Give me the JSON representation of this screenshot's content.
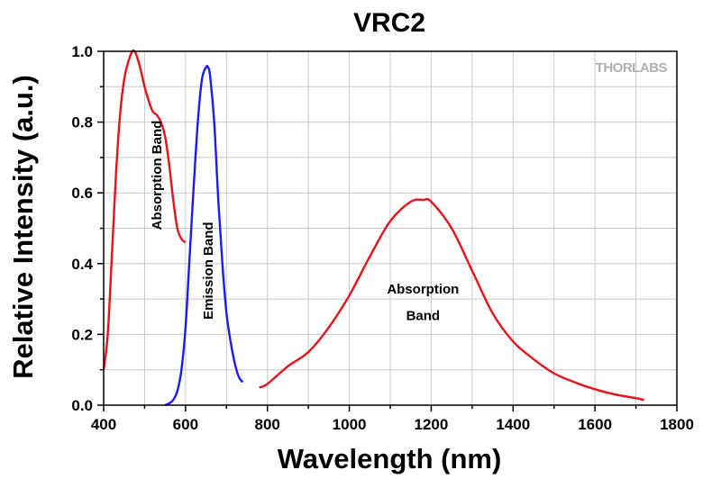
{
  "chart_data": {
    "type": "line",
    "title": "VRC2",
    "xlabel": "Wavelength (nm)",
    "ylabel": "Relative Intensity (a.u.)",
    "xlim": [
      400,
      1800
    ],
    "ylim": [
      0.0,
      1.0
    ],
    "grid": true,
    "x_ticks": [
      "400",
      "600",
      "800",
      "1000",
      "1200",
      "1400",
      "1600",
      "1800"
    ],
    "y_ticks": [
      "0.0",
      "0.2",
      "0.4",
      "0.6",
      "0.8",
      "1.0"
    ],
    "logo": "THORLABS",
    "series": [
      {
        "label": "Absorption Band",
        "color": "#e8101a",
        "x": [
          400,
          410,
          420,
          430,
          440,
          450,
          460,
          470,
          475,
          480,
          490,
          500,
          510,
          520,
          530,
          540,
          550,
          560,
          570,
          580,
          590,
          600
        ],
        "y": [
          0.1,
          0.2,
          0.42,
          0.65,
          0.82,
          0.92,
          0.97,
          1.0,
          1.0,
          0.99,
          0.95,
          0.9,
          0.86,
          0.83,
          0.82,
          0.8,
          0.76,
          0.68,
          0.58,
          0.5,
          0.47,
          0.46
        ]
      },
      {
        "label": "Emission Band",
        "color": "#1a1aff",
        "x": [
          550,
          560,
          570,
          580,
          590,
          600,
          610,
          620,
          630,
          640,
          650,
          655,
          660,
          670,
          680,
          690,
          700,
          710,
          720,
          730,
          740
        ],
        "y": [
          0.0,
          0.005,
          0.015,
          0.04,
          0.1,
          0.22,
          0.42,
          0.62,
          0.8,
          0.92,
          0.955,
          0.955,
          0.93,
          0.8,
          0.58,
          0.4,
          0.26,
          0.18,
          0.12,
          0.08,
          0.065
        ]
      },
      {
        "label": "Absorption Band",
        "color": "#e8101a",
        "x": [
          780,
          800,
          850,
          900,
          950,
          1000,
          1050,
          1100,
          1150,
          1180,
          1200,
          1250,
          1300,
          1350,
          1400,
          1450,
          1500,
          1550,
          1600,
          1650,
          1700,
          1720
        ],
        "y": [
          0.05,
          0.06,
          0.11,
          0.15,
          0.22,
          0.31,
          0.42,
          0.52,
          0.575,
          0.58,
          0.575,
          0.5,
          0.38,
          0.26,
          0.18,
          0.13,
          0.09,
          0.065,
          0.045,
          0.03,
          0.02,
          0.015
        ]
      }
    ],
    "annotations": [
      {
        "text": "Absorption Band",
        "x": 530,
        "y": 0.65,
        "rotation": -90
      },
      {
        "text": "Emission Band",
        "x": 655,
        "y": 0.38,
        "rotation": -90
      },
      {
        "text": "Absorption",
        "x": 1180,
        "y": 0.315
      },
      {
        "text": "Band",
        "x": 1180,
        "y": 0.24
      }
    ]
  }
}
